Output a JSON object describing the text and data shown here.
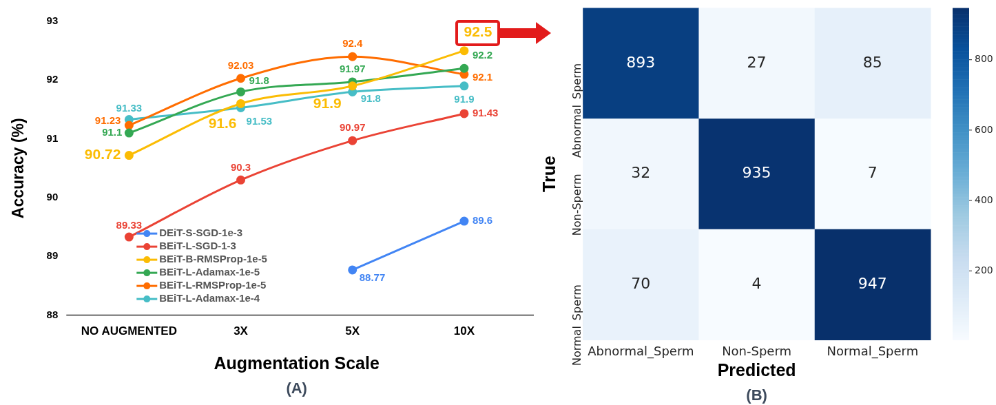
{
  "chart_data": [
    {
      "type": "line",
      "categories": [
        "NO AUGMENTED",
        "3X",
        "5X",
        "10X"
      ],
      "series": [
        {
          "name": "DEiT-S-SGD-1e-3",
          "color": "#4285f4",
          "values": [
            null,
            null,
            88.77,
            89.6
          ]
        },
        {
          "name": "BEiT-L-SGD-1-3",
          "color": "#ea4335",
          "values": [
            89.33,
            90.3,
            90.97,
            91.43
          ]
        },
        {
          "name": "BEiT-B-RMSProp-1e-5",
          "color": "#fbbc04",
          "values": [
            90.72,
            91.6,
            91.9,
            92.5
          ]
        },
        {
          "name": "BEiT-L-Adamax-1e-5",
          "color": "#34a853",
          "values": [
            91.1,
            91.8,
            91.97,
            92.2
          ]
        },
        {
          "name": "BEiT-L-RMSProp-1e-5",
          "color": "#ff6d01",
          "values": [
            91.23,
            92.03,
            92.4,
            92.1
          ]
        },
        {
          "name": "BEiT-L-Adamax-1e-4",
          "color": "#46bdc6",
          "values": [
            91.33,
            91.53,
            91.8,
            91.9
          ]
        }
      ],
      "ylim": [
        88,
        93
      ],
      "yticks": [
        88,
        89,
        90,
        91,
        92,
        93
      ],
      "xlabel": "Augmentation Scale",
      "ylabel": "Accuracy (%)",
      "annotations": [
        "(A)"
      ],
      "data_labels": true,
      "legend": "bottom left",
      "marker": "circle",
      "grid": false
    },
    {
      "type": "heatmap",
      "categories": [
        "Abnormal_Sperm",
        "Non-Sperm",
        "Normal_Sperm"
      ],
      "y_categories": [
        "Abnormal_Sperm",
        "Non-Sperm",
        "Normal_Sperm"
      ],
      "cells": [
        [
          893,
          27,
          85
        ],
        [
          32,
          935,
          7
        ],
        [
          70,
          4,
          947
        ]
      ],
      "clim": [
        4,
        947
      ],
      "cticks": [
        200,
        400,
        600,
        800
      ],
      "xlabel": "Predicted",
      "ylabel": "True",
      "annotations": [
        "(B)"
      ],
      "data_labels": true
    }
  ]
}
